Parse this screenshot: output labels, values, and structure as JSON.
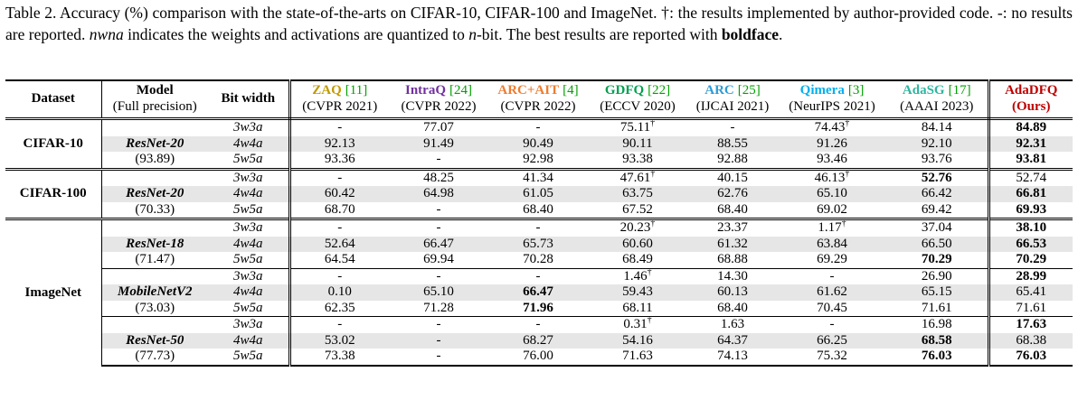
{
  "caption": [
    "Table 2.  Accuracy (%) comparison with the state-of-the-arts on CIFAR-10, CIFAR-100 and ImageNet.  †: the results implemented by author-provided code.  -: no results are reported.  ",
    "nwna",
    " indicates the weights and activations are quantized to ",
    "n",
    "-bit.  The best results are reported with ",
    "boldface",
    "."
  ],
  "header": {
    "dataset": "Dataset",
    "model": "Model",
    "model_note": "(Full precision)",
    "bits": "Bit width",
    "ref_color": "#00a000",
    "methods": [
      {
        "name": "ZAQ",
        "ref": "[11]",
        "venue": "(CVPR 2021)",
        "color": "#c09a00"
      },
      {
        "name": "IntraQ",
        "ref": "[24]",
        "venue": "(CVPR 2022)",
        "color": "#7030a0"
      },
      {
        "name": "ARC+AIT",
        "ref": "[4]",
        "venue": "(CVPR 2022)",
        "color": "#ed7d31"
      },
      {
        "name": "GDFQ",
        "ref": "[22]",
        "venue": "(ECCV 2020)",
        "color": "#00a050"
      },
      {
        "name": "ARC",
        "ref": "[25]",
        "venue": "(IJCAI 2021)",
        "color": "#2e9bd6"
      },
      {
        "name": "Qimera",
        "ref": "[3]",
        "venue": "(NeurIPS 2021)",
        "color": "#00b0f0"
      },
      {
        "name": "AdaSG",
        "ref": "[17]",
        "venue": "(AAAI 2023)",
        "color": "#2db5a0"
      },
      {
        "name": "AdaDFQ",
        "venue": "(Ours)",
        "color": "#c00000"
      }
    ]
  },
  "groups": [
    {
      "dataset": "CIFAR-10",
      "models": [
        {
          "name": "ResNet-20",
          "fp": "(93.89)",
          "rows": [
            {
              "bits": "3w3a",
              "cells": [
                "-",
                "77.07",
                "-",
                {
                  "text": "75.11",
                  "sup": "†"
                },
                "-",
                {
                  "text": "74.43",
                  "sup": "†"
                },
                "84.14",
                {
                  "text": "84.89",
                  "bold": true
                }
              ]
            },
            {
              "bits": "4w4a",
              "cells": [
                "92.13",
                "91.49",
                "90.49",
                "90.11",
                "88.55",
                "91.26",
                "92.10",
                {
                  "text": "92.31",
                  "bold": true
                }
              ]
            },
            {
              "bits": "5w5a",
              "cells": [
                "93.36",
                "-",
                "92.98",
                "93.38",
                "92.88",
                "93.46",
                "93.76",
                {
                  "text": "93.81",
                  "bold": true
                }
              ]
            }
          ]
        }
      ]
    },
    {
      "dataset": "CIFAR-100",
      "models": [
        {
          "name": "ResNet-20",
          "fp": "(70.33)",
          "rows": [
            {
              "bits": "3w3a",
              "cells": [
                "-",
                "48.25",
                "41.34",
                {
                  "text": "47.61",
                  "sup": "†"
                },
                "40.15",
                {
                  "text": "46.13",
                  "sup": "†"
                },
                {
                  "text": "52.76",
                  "bold": true
                },
                "52.74"
              ]
            },
            {
              "bits": "4w4a",
              "cells": [
                "60.42",
                "64.98",
                "61.05",
                "63.75",
                "62.76",
                "65.10",
                "66.42",
                {
                  "text": "66.81",
                  "bold": true
                }
              ]
            },
            {
              "bits": "5w5a",
              "cells": [
                "68.70",
                "-",
                "68.40",
                "67.52",
                "68.40",
                "69.02",
                "69.42",
                {
                  "text": "69.93",
                  "bold": true
                }
              ]
            }
          ]
        }
      ]
    },
    {
      "dataset": "ImageNet",
      "models": [
        {
          "name": "ResNet-18",
          "fp": "(71.47)",
          "rows": [
            {
              "bits": "3w3a",
              "cells": [
                "-",
                "-",
                "-",
                {
                  "text": "20.23",
                  "sup": "†"
                },
                "23.37",
                {
                  "text": "1.17",
                  "sup": "†"
                },
                "37.04",
                {
                  "text": "38.10",
                  "bold": true
                }
              ]
            },
            {
              "bits": "4w4a",
              "cells": [
                "52.64",
                "66.47",
                "65.73",
                "60.60",
                "61.32",
                "63.84",
                "66.50",
                {
                  "text": "66.53",
                  "bold": true
                }
              ]
            },
            {
              "bits": "5w5a",
              "cells": [
                "64.54",
                "69.94",
                "70.28",
                "68.49",
                "68.88",
                "69.29",
                {
                  "text": "70.29",
                  "bold": true
                },
                {
                  "text": "70.29",
                  "bold": true
                }
              ]
            }
          ]
        },
        {
          "name": "MobileNetV2",
          "fp": "(73.03)",
          "rows": [
            {
              "bits": "3w3a",
              "cells": [
                "-",
                "-",
                "-",
                {
                  "text": "1.46",
                  "sup": "†"
                },
                "14.30",
                "-",
                "26.90",
                {
                  "text": "28.99",
                  "bold": true
                }
              ]
            },
            {
              "bits": "4w4a",
              "cells": [
                "0.10",
                "65.10",
                {
                  "text": "66.47",
                  "bold": true
                },
                "59.43",
                "60.13",
                "61.62",
                "65.15",
                "65.41"
              ]
            },
            {
              "bits": "5w5a",
              "cells": [
                "62.35",
                "71.28",
                {
                  "text": "71.96",
                  "bold": true
                },
                "68.11",
                "68.40",
                "70.45",
                "71.61",
                "71.61"
              ]
            }
          ]
        },
        {
          "name": "ResNet-50",
          "fp": "(77.73)",
          "rows": [
            {
              "bits": "3w3a",
              "cells": [
                "-",
                "-",
                "-",
                {
                  "text": "0.31",
                  "sup": "†"
                },
                "1.63",
                "-",
                "16.98",
                {
                  "text": "17.63",
                  "bold": true
                }
              ]
            },
            {
              "bits": "4w4a",
              "cells": [
                "53.02",
                "-",
                "68.27",
                "54.16",
                "64.37",
                "66.25",
                {
                  "text": "68.58",
                  "bold": true
                },
                "68.38"
              ]
            },
            {
              "bits": "5w5a",
              "cells": [
                "73.38",
                "-",
                "76.00",
                "71.63",
                "74.13",
                "75.32",
                {
                  "text": "76.03",
                  "bold": true
                },
                {
                  "text": "76.03",
                  "bold": true
                }
              ]
            }
          ]
        }
      ]
    }
  ]
}
